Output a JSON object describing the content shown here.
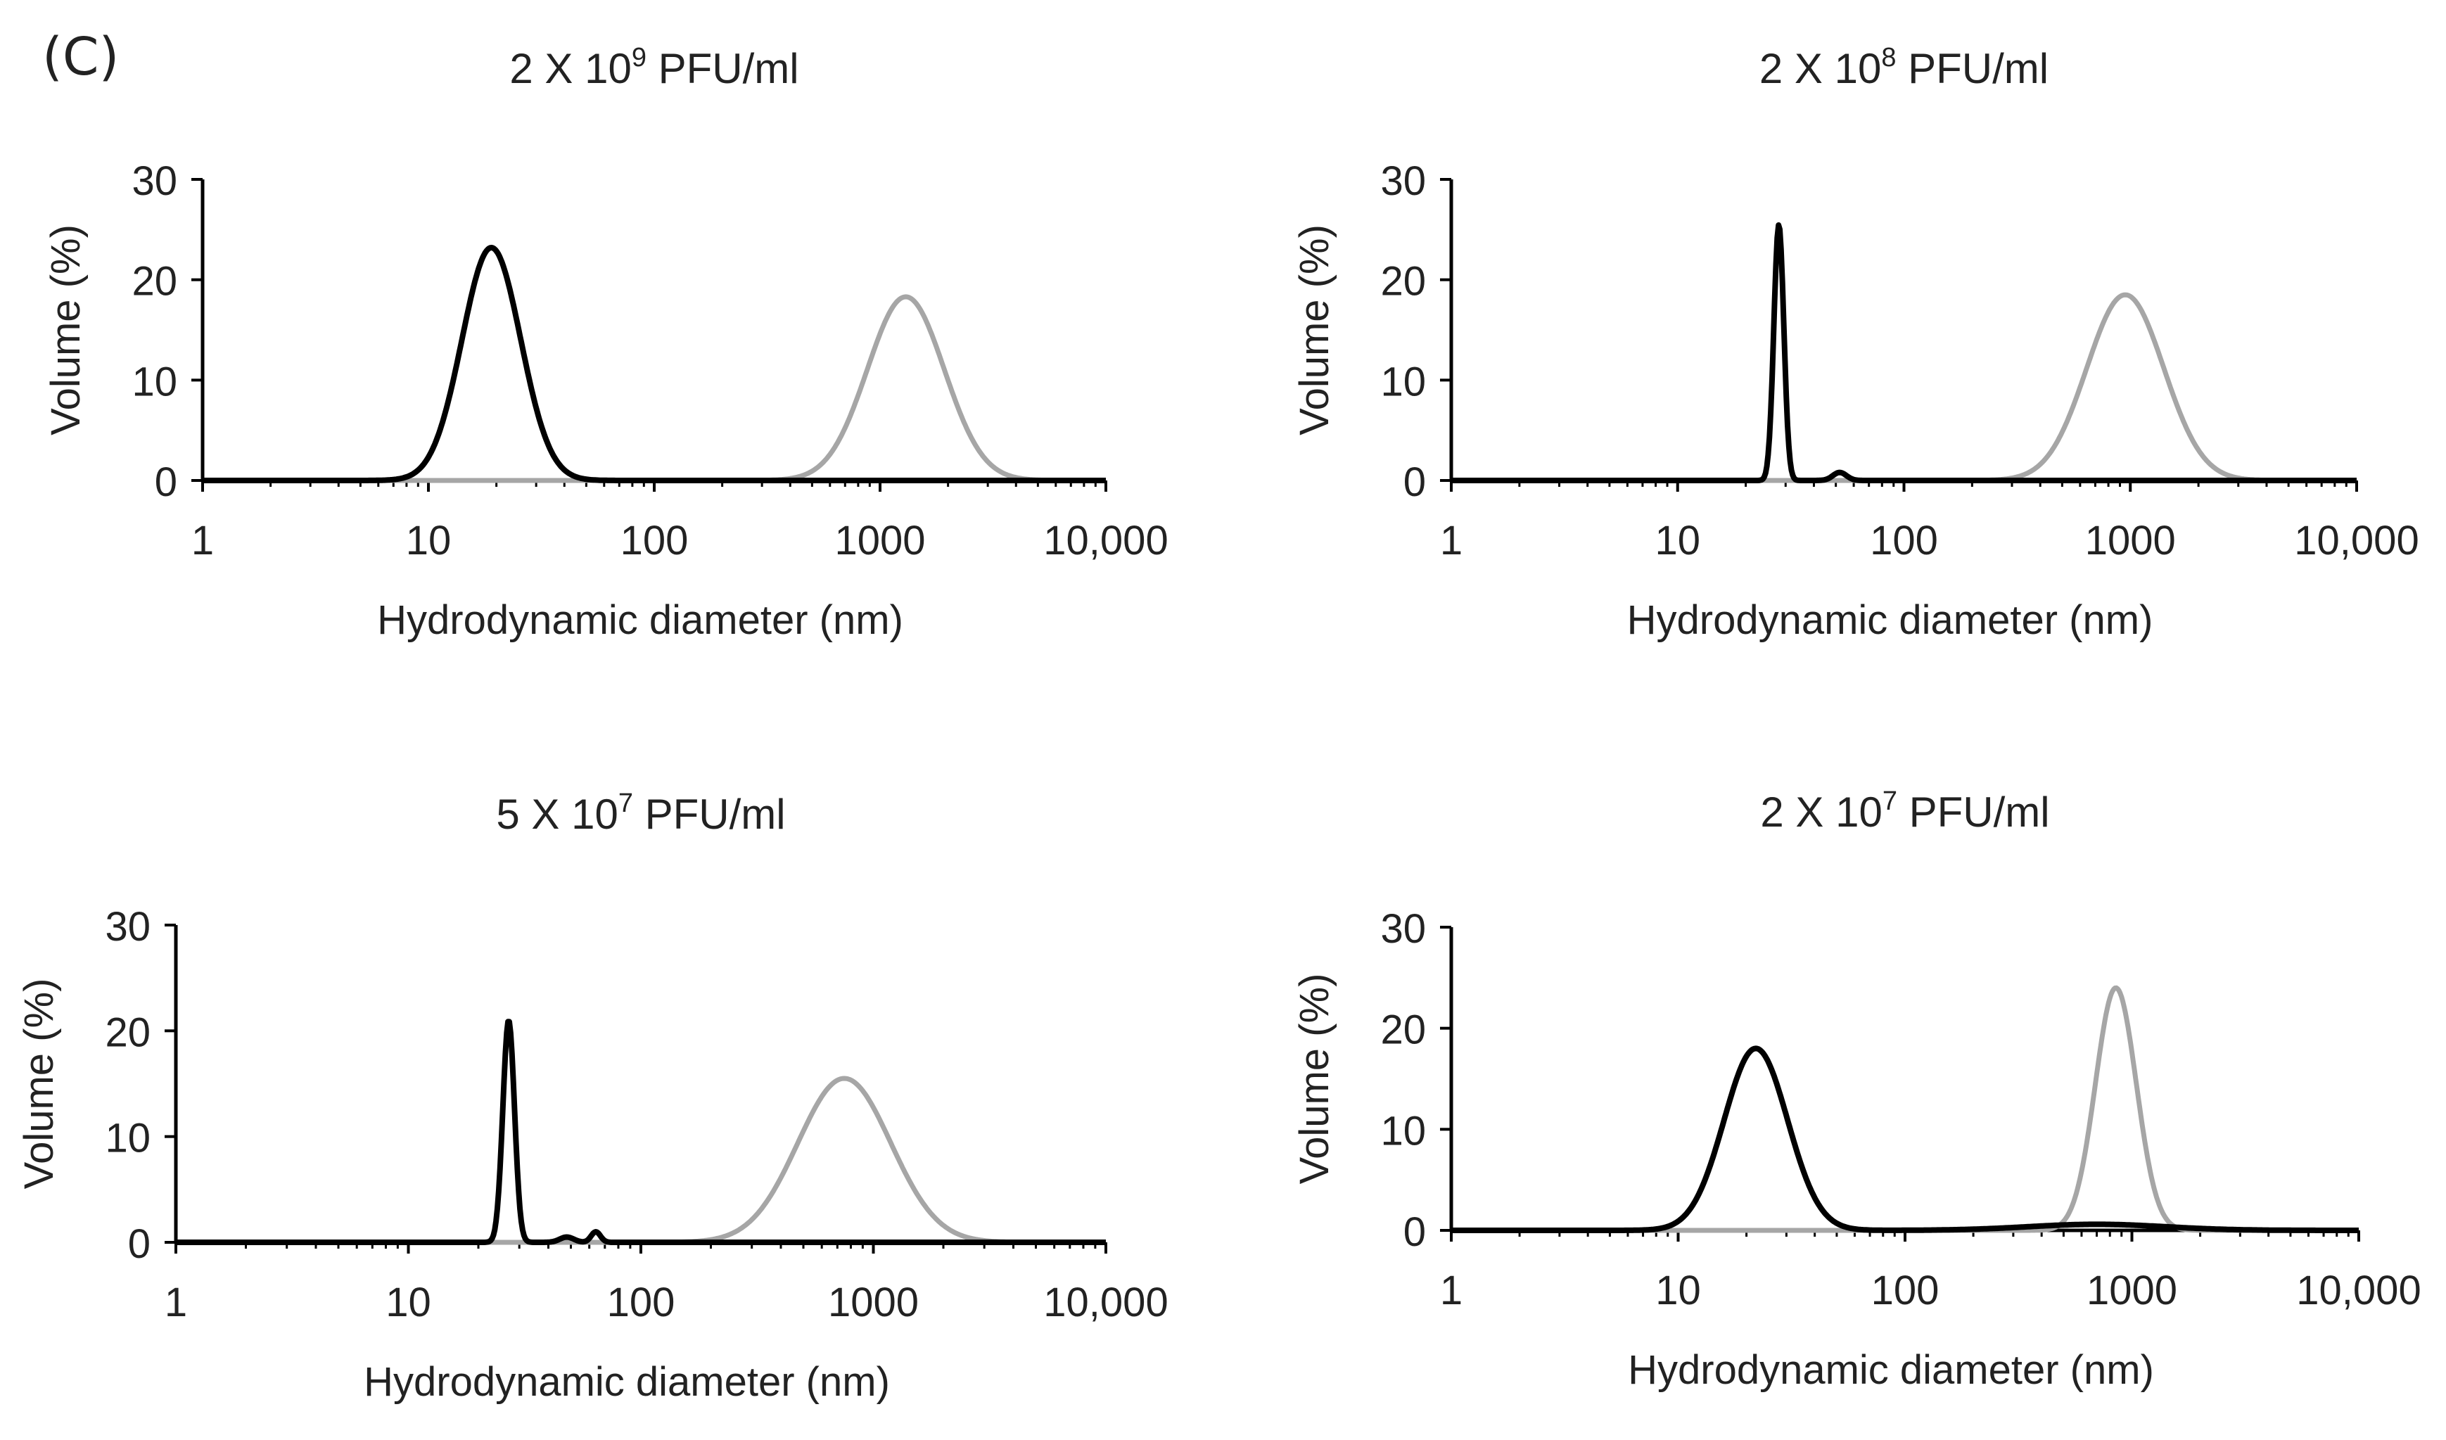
{
  "panel_label": "(C)",
  "colors": {
    "sample_a": "#000000",
    "sample_b": "#a6a6a6",
    "axis": "#000000"
  },
  "chart_data": [
    {
      "type": "line",
      "title": "2 X 10",
      "title_exp": "9",
      "title_unit": "PFU/ml",
      "xlabel": "Hydrodynamic diameter (nm)",
      "ylabel": "Volume (%)",
      "xscale": "log",
      "xlim": [
        1,
        10000
      ],
      "ylim": [
        0,
        30
      ],
      "xticks": [
        "1",
        "10",
        "100",
        "1000",
        "10,000"
      ],
      "yticks": [
        "0",
        "10",
        "20",
        "30"
      ],
      "series": [
        {
          "name": "black",
          "peaks": [
            {
              "center": 19,
              "height": 23.2,
              "width": 0.13
            }
          ]
        },
        {
          "name": "gray",
          "peaks": [
            {
              "center": 1300,
              "height": 18.3,
              "width": 0.17
            }
          ]
        }
      ]
    },
    {
      "type": "line",
      "title": "2 X 10",
      "title_exp": "8",
      "title_unit": "PFU/ml",
      "xlabel": "Hydrodynamic diameter (nm)",
      "ylabel": "Volume (%)",
      "xscale": "log",
      "xlim": [
        1,
        10000
      ],
      "ylim": [
        0,
        30
      ],
      "xticks": [
        "1",
        "10",
        "100",
        "1000",
        "10,000"
      ],
      "yticks": [
        "0",
        "10",
        "20",
        "30"
      ],
      "series": [
        {
          "name": "black",
          "peaks": [
            {
              "center": 28,
              "height": 25.5,
              "width": 0.022
            },
            {
              "center": 52,
              "height": 0.8,
              "width": 0.03
            }
          ]
        },
        {
          "name": "gray",
          "peaks": [
            {
              "center": 950,
              "height": 18.5,
              "width": 0.17
            }
          ]
        }
      ]
    },
    {
      "type": "line",
      "title": "5 X 10",
      "title_exp": "7",
      "title_unit": "PFU/ml",
      "xlabel": "Hydrodynamic diameter (nm)",
      "ylabel": "Volume (%)",
      "xscale": "log",
      "xlim": [
        1,
        10000
      ],
      "ylim": [
        0,
        30
      ],
      "xticks": [
        "1",
        "10",
        "100",
        "1000",
        "10,000"
      ],
      "yticks": [
        "0",
        "10",
        "20",
        "30"
      ],
      "series": [
        {
          "name": "black",
          "peaks": [
            {
              "center": 27,
              "height": 21,
              "width": 0.025
            },
            {
              "center": 48,
              "height": 0.5,
              "width": 0.03
            },
            {
              "center": 64,
              "height": 1.0,
              "width": 0.02
            }
          ]
        },
        {
          "name": "gray",
          "peaks": [
            {
              "center": 750,
              "height": 15.5,
              "width": 0.2
            }
          ]
        }
      ]
    },
    {
      "type": "line",
      "title": "2 X 10",
      "title_exp": "7",
      "title_unit": "PFU/ml",
      "xlabel": "Hydrodynamic diameter (nm)",
      "ylabel": "Volume (%)",
      "xscale": "log",
      "xlim": [
        1,
        10000
      ],
      "ylim": [
        0,
        30
      ],
      "xticks": [
        "1",
        "10",
        "100",
        "1000",
        "10,000"
      ],
      "yticks": [
        "0",
        "10",
        "20",
        "30"
      ],
      "series": [
        {
          "name": "black",
          "peaks": [
            {
              "center": 22,
              "height": 18,
              "width": 0.14
            },
            {
              "center": 700,
              "height": 0.6,
              "width": 0.3
            }
          ]
        },
        {
          "name": "gray",
          "peaks": [
            {
              "center": 850,
              "height": 24,
              "width": 0.09
            }
          ]
        }
      ]
    }
  ]
}
